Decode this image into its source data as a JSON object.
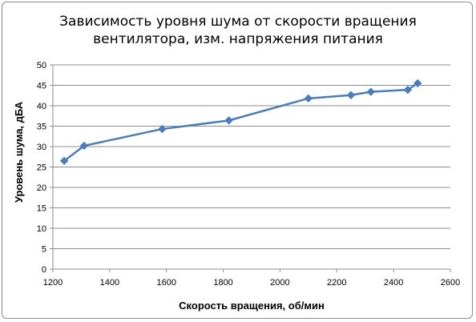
{
  "chart_data": {
    "type": "line",
    "title": "Зависимость уровня шума от скорости вращения вентилятора, изм. напряжения питания",
    "title_lines": [
      "Зависимость уровня шума от скорости вращения",
      "вентилятора, изм. напряжения питания"
    ],
    "xlabel": "Скорость вращения, об/мин",
    "ylabel": "Уровень шума, дБА",
    "xlim": [
      1200,
      2600
    ],
    "ylim": [
      0,
      50
    ],
    "x_ticks": [
      1200,
      1400,
      1600,
      1800,
      2000,
      2200,
      2400,
      2600
    ],
    "y_ticks": [
      0,
      5,
      10,
      15,
      20,
      25,
      30,
      35,
      40,
      45,
      50
    ],
    "grid": "horizontal",
    "legend": "none",
    "series": [
      {
        "color": "#4a7ebb",
        "marker": "diamond",
        "points": [
          {
            "x": 1240,
            "y": 26.5
          },
          {
            "x": 1310,
            "y": 30.2
          },
          {
            "x": 1585,
            "y": 34.3
          },
          {
            "x": 1820,
            "y": 36.4
          },
          {
            "x": 2100,
            "y": 41.8
          },
          {
            "x": 2250,
            "y": 42.6
          },
          {
            "x": 2320,
            "y": 43.4
          },
          {
            "x": 2450,
            "y": 43.9
          },
          {
            "x": 2485,
            "y": 45.5
          }
        ]
      }
    ],
    "colors": {
      "gridline": "#8c8c8c",
      "axis": "#8c8c8c",
      "line": "#4a7ebb"
    }
  }
}
